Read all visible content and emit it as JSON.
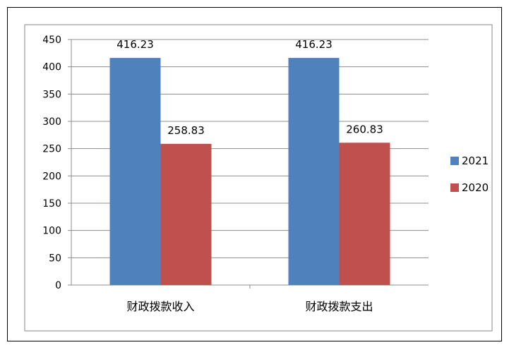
{
  "chart_data": {
    "type": "bar",
    "categories": [
      "财政拨款收入",
      "财政拨款支出"
    ],
    "series": [
      {
        "name": "2021",
        "values": [
          416.23,
          416.23
        ],
        "labels": [
          "416.23",
          "416.23"
        ],
        "color": "#4F81BD"
      },
      {
        "name": "2020",
        "values": [
          258.83,
          260.83
        ],
        "labels": [
          "258.83",
          "260.83"
        ],
        "color": "#C0504D"
      }
    ],
    "yticks": [
      0,
      50,
      100,
      150,
      200,
      250,
      300,
      350,
      400,
      450
    ],
    "ylim": [
      0,
      450
    ],
    "grid": true,
    "legend": "right"
  }
}
